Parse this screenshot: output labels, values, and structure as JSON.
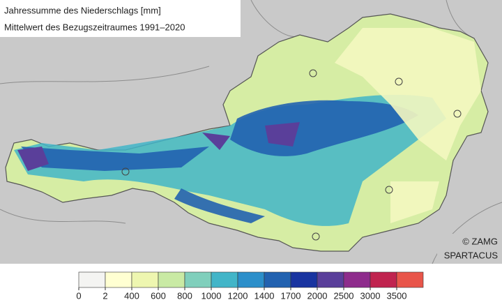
{
  "header": {
    "title": "Jahressumme des Niederschlags [mm]",
    "subtitle": "Mittelwert des Bezugszeitraumes 1991–2020"
  },
  "credit": {
    "line1": "© ZAMG",
    "line2": "SPARTACUS"
  },
  "legend": {
    "ticks": [
      0,
      2,
      400,
      600,
      800,
      1000,
      1200,
      1400,
      1700,
      2000,
      2500,
      3000,
      3500
    ],
    "colors": [
      "#f4f4f2",
      "#ffffd2",
      "#eef6b0",
      "#c9eaa4",
      "#80cfbc",
      "#42b5c8",
      "#2c8fca",
      "#2262b0",
      "#1934a0",
      "#5a3f9a",
      "#8e2c8c",
      "#c0244f",
      "#e8554a"
    ]
  }
}
